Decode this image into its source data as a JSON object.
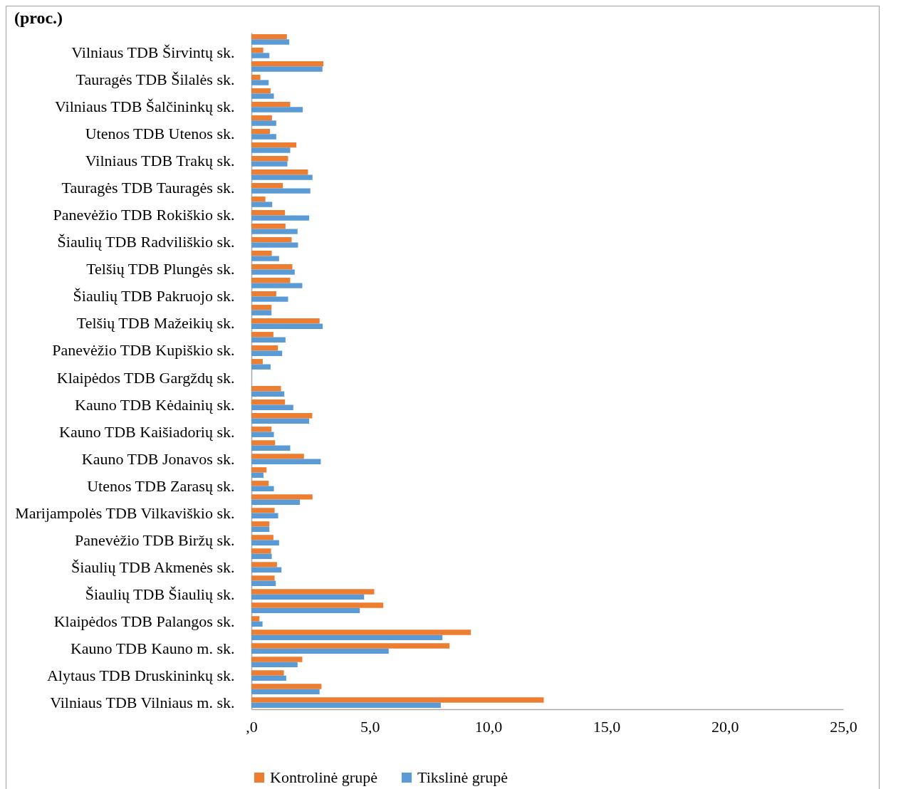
{
  "chart_data": {
    "type": "bar",
    "orientation": "horizontal",
    "title": "(proc.)",
    "categories": [
      null,
      "Vilniaus TDB Širvintų sk.",
      null,
      "Tauragės TDB Šilalės sk.",
      null,
      "Vilniaus TDB Šalčininkų sk.",
      null,
      "Utenos TDB Utenos sk.",
      null,
      "Vilniaus TDB Trakų sk.",
      null,
      "Tauragės TDB Tauragės sk.",
      null,
      "Panevėžio TDB Rokiškio sk.",
      null,
      "Šiaulių TDB Radviliškio sk.",
      null,
      "Telšių TDB Plungės sk.",
      null,
      "Šiaulių TDB Pakruojo sk.",
      null,
      "Telšių TDB Mažeikių sk.",
      null,
      "Panevėžio TDB Kupiškio sk.",
      null,
      "Klaipėdos TDB Gargždų sk.",
      null,
      "Kauno TDB Kėdainių sk.",
      null,
      "Kauno TDB Kaišiadorių sk.",
      null,
      "Kauno TDB Jonavos sk.",
      null,
      "Utenos TDB Zarasų sk.",
      null,
      "Marijampolės TDB Vilkaviškio sk.",
      null,
      "Panevėžio TDB Biržų sk.",
      null,
      "Šiaulių TDB Akmenės sk.",
      null,
      "Šiaulių TDB Šiaulių sk.",
      null,
      "Klaipėdos TDB Palangos sk.",
      null,
      "Kauno TDB Kauno m. sk.",
      null,
      "Alytaus TDB Druskininkų sk.",
      null,
      "Vilniaus TDB Vilniaus m. sk."
    ],
    "series": [
      {
        "name": "Kontrolinė grupė",
        "color": "#ed7d31",
        "values": [
          1.5,
          0.5,
          3.04,
          0.38,
          0.81,
          1.64,
          0.87,
          0.78,
          1.9,
          1.55,
          2.39,
          1.33,
          0.59,
          1.42,
          1.44,
          1.7,
          0.86,
          1.73,
          1.64,
          1.05,
          0.85,
          2.88,
          0.93,
          1.12,
          0.48,
          null,
          1.25,
          1.42,
          2.57,
          0.85,
          1.0,
          2.22,
          0.64,
          0.73,
          2.58,
          0.98,
          0.76,
          0.93,
          0.83,
          1.08,
          0.98,
          5.19,
          5.57,
          0.34,
          9.27,
          8.37,
          2.15,
          1.37,
          2.96,
          12.35
        ]
      },
      {
        "name": "Tikslinė grupė",
        "color": "#5b9bd5",
        "values": [
          1.6,
          0.76,
          3.0,
          0.73,
          0.95,
          2.17,
          1.05,
          1.05,
          1.64,
          1.52,
          2.58,
          2.49,
          0.88,
          2.44,
          1.95,
          1.97,
          1.17,
          1.83,
          2.15,
          1.55,
          0.85,
          3.01,
          1.44,
          1.3,
          0.81,
          null,
          1.39,
          1.77,
          2.44,
          0.95,
          1.64,
          2.93,
          0.51,
          0.95,
          2.05,
          1.13,
          0.76,
          1.17,
          0.86,
          1.27,
          1.03,
          4.76,
          4.58,
          0.47,
          8.07,
          5.8,
          1.95,
          1.47,
          2.88,
          8.0
        ]
      }
    ],
    "xlim": [
      0,
      25
    ],
    "xticks": [
      {
        "value": 0,
        "label": ",0"
      },
      {
        "value": 5,
        "label": "5,0"
      },
      {
        "value": 10,
        "label": "10,0"
      },
      {
        "value": 15,
        "label": "15,0"
      },
      {
        "value": 20,
        "label": "20,0"
      },
      {
        "value": 25,
        "label": "25,0"
      }
    ],
    "legend": "bottom"
  }
}
